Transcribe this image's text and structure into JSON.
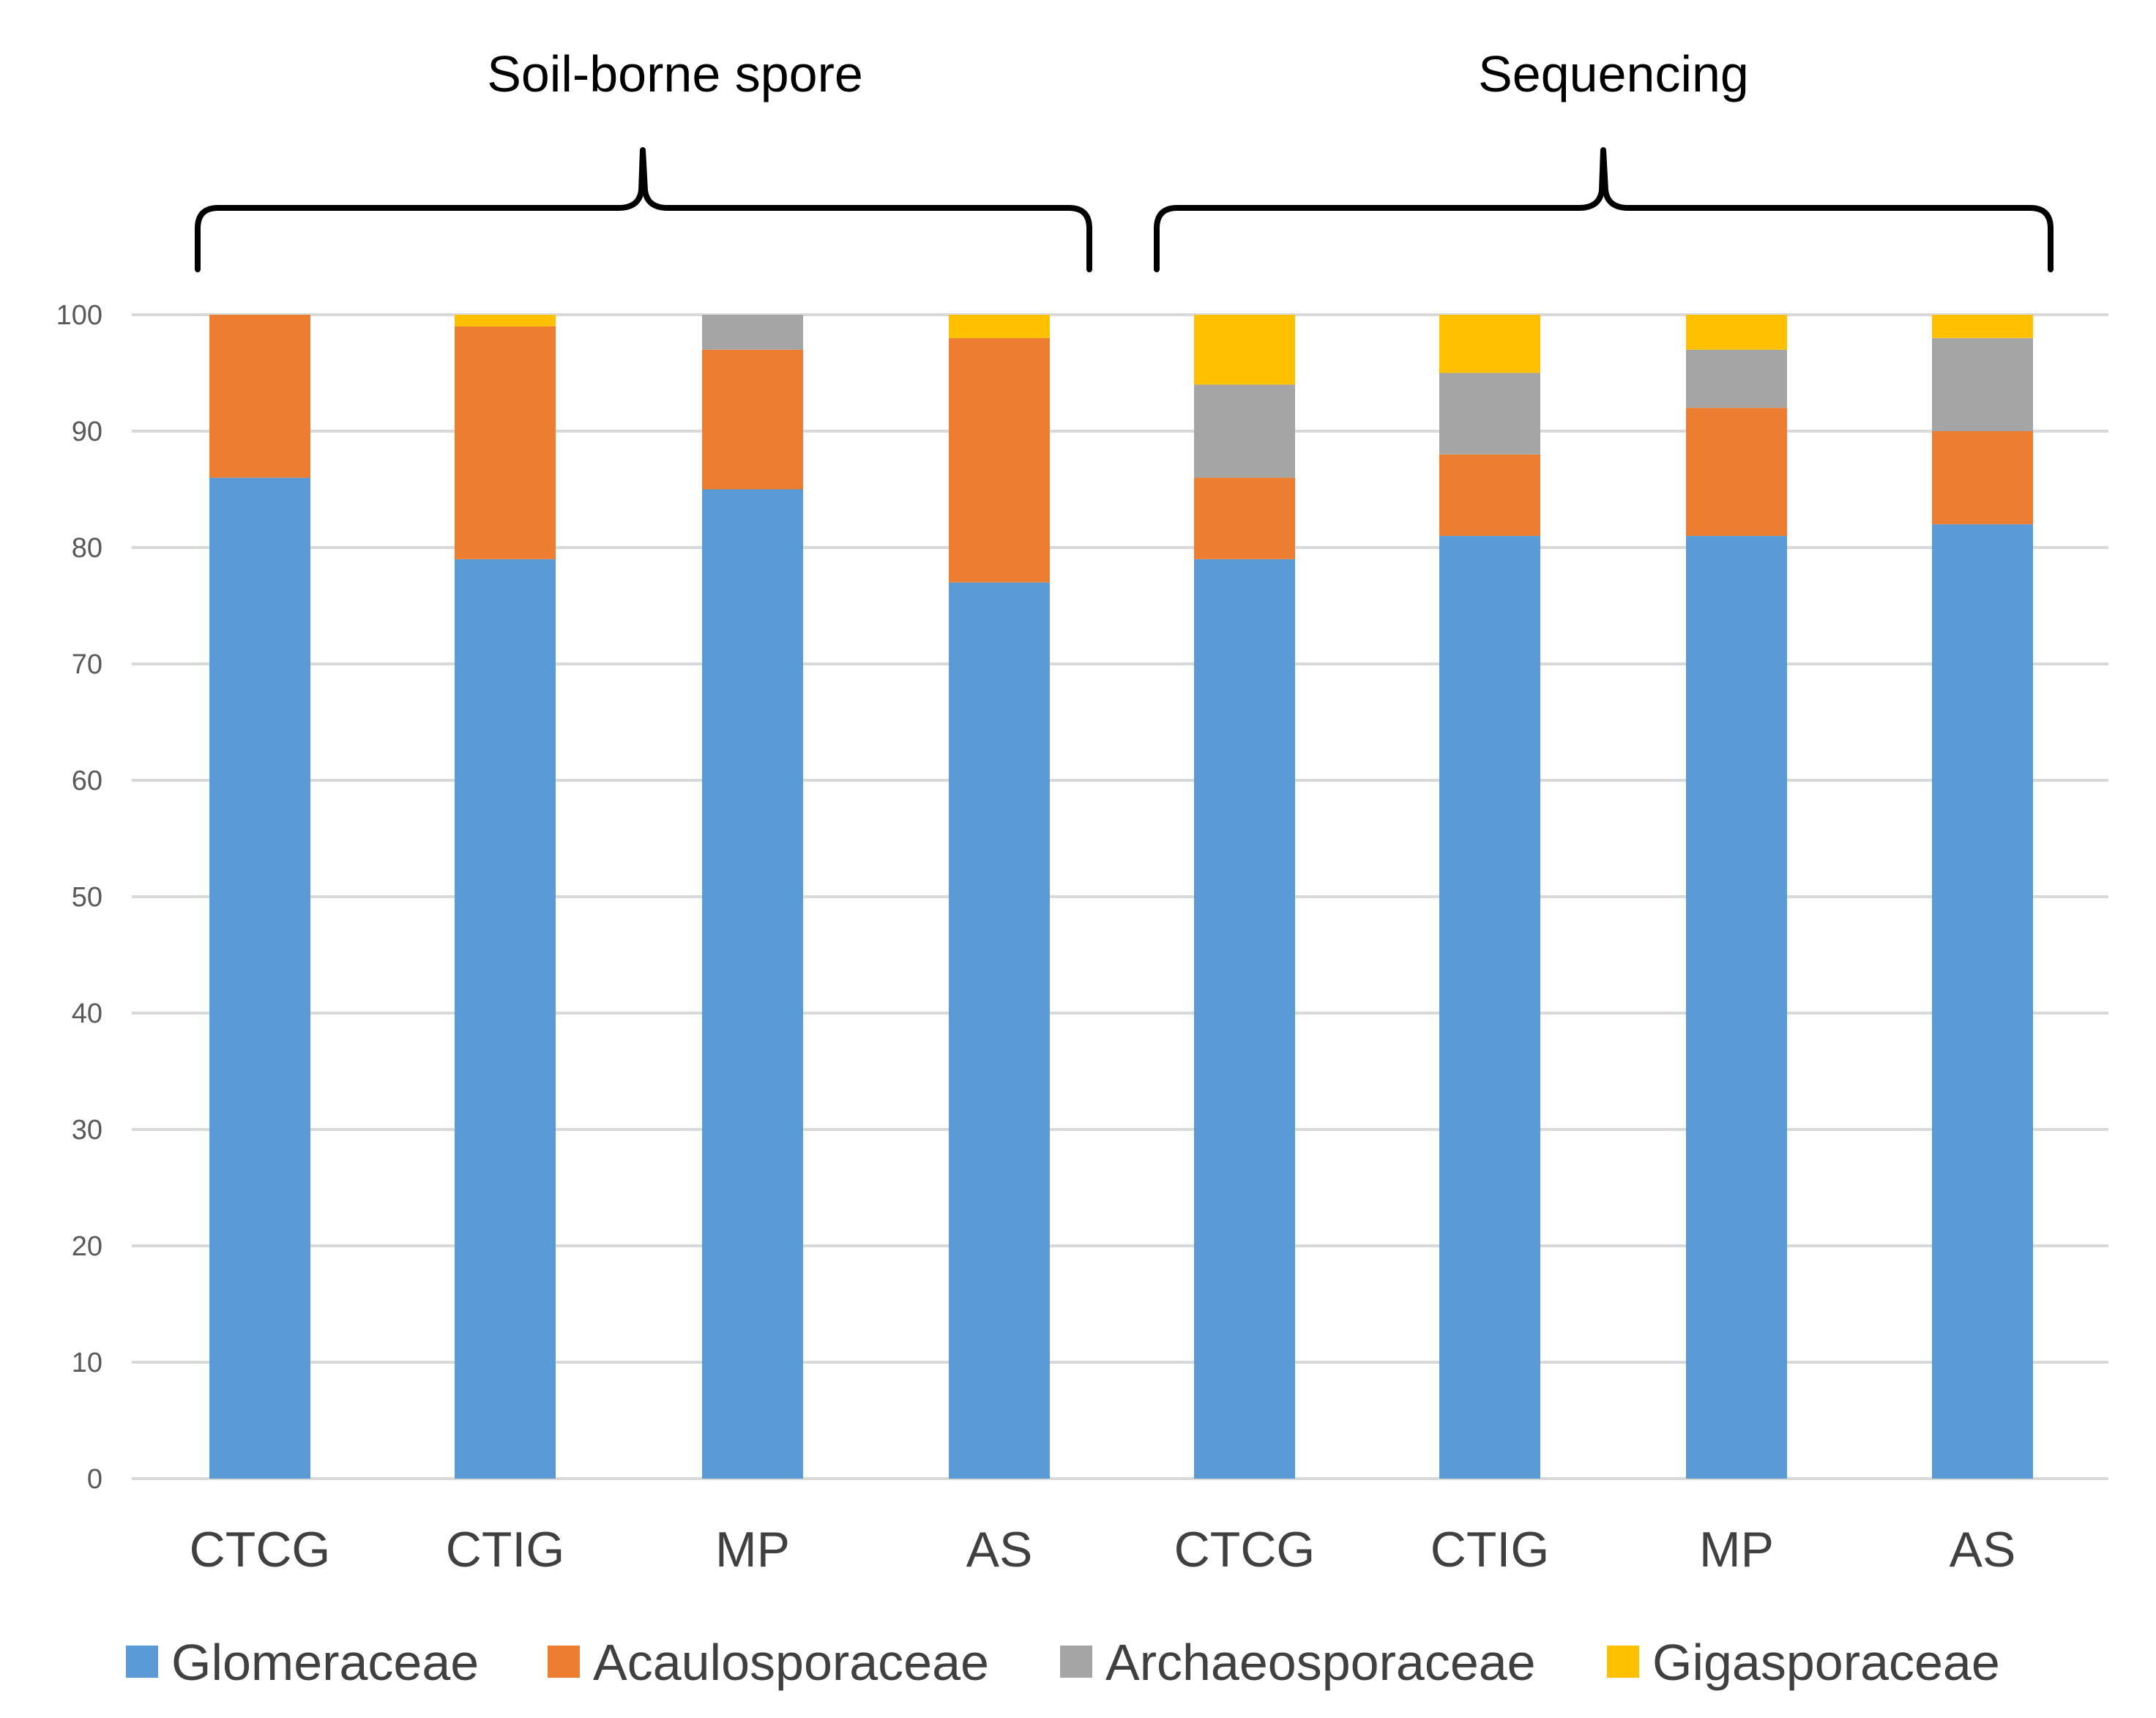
{
  "chart_data": {
    "type": "bar",
    "stacked": true,
    "title": "",
    "xlabel": "",
    "ylabel": "",
    "ylim": [
      0,
      100
    ],
    "yticks": [
      0,
      10,
      20,
      30,
      40,
      50,
      60,
      70,
      80,
      90,
      100
    ],
    "grid": true,
    "legend_position": "bottom",
    "groups": [
      {
        "label": "Soil-borne spore",
        "categories": [
          0,
          1,
          2,
          3
        ]
      },
      {
        "label": "Sequencing",
        "categories": [
          4,
          5,
          6,
          7
        ]
      }
    ],
    "categories": [
      "CTCG",
      "CTIG",
      "MP",
      "AS",
      "CTCG",
      "CTIG",
      "MP",
      "AS"
    ],
    "series": [
      {
        "name": "Glomeraceae",
        "color": "#5b9bd5",
        "values": [
          86,
          79,
          85,
          77,
          79,
          81,
          81,
          82
        ]
      },
      {
        "name": "Acaulosporaceae",
        "color": "#ed7d31",
        "values": [
          14,
          20,
          12,
          21,
          7,
          7,
          11,
          8
        ]
      },
      {
        "name": "Archaeosporaceae",
        "color": "#a5a5a5",
        "values": [
          0,
          0,
          3,
          0,
          8,
          7,
          5,
          8
        ]
      },
      {
        "name": "Gigasporaceae",
        "color": "#ffc000",
        "values": [
          0,
          1,
          0,
          2,
          6,
          5,
          3,
          2
        ]
      }
    ]
  }
}
